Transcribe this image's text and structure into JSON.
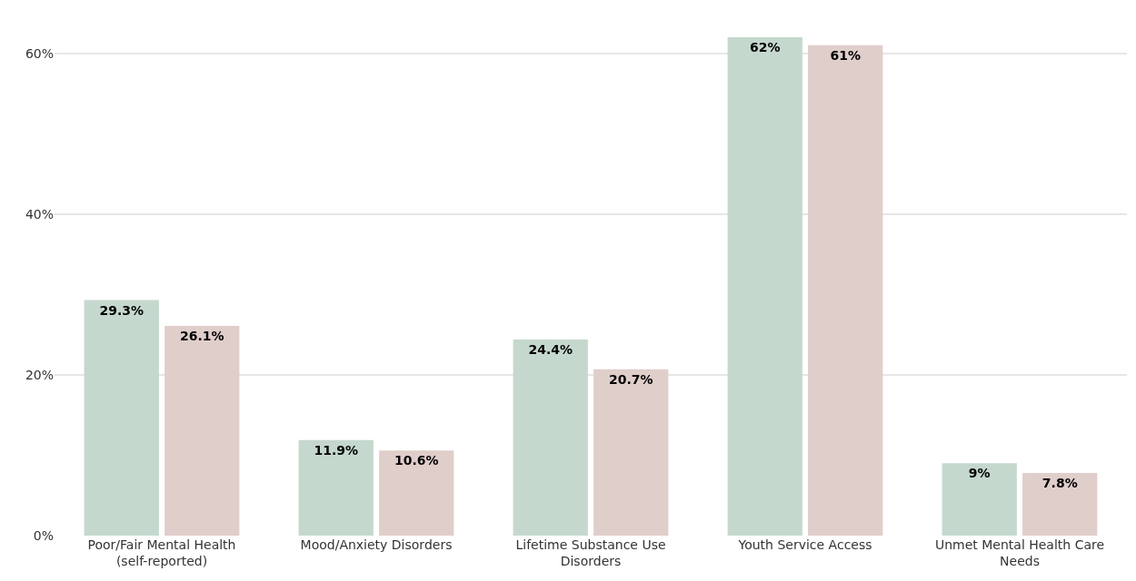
{
  "chart_data": {
    "type": "bar",
    "categories": [
      "Poor/Fair Mental Health (self-reported)",
      "Mood/Anxiety Disorders",
      "Lifetime Substance Use Disorders",
      "Youth Service Access",
      "Unmet Mental Health Care Needs"
    ],
    "series": [
      {
        "color": "#c5d8ce",
        "values": [
          29.3,
          11.9,
          24.4,
          62,
          9
        ],
        "value_labels": [
          "29.3%",
          "11.9%",
          "24.4%",
          "62%",
          "9%"
        ]
      },
      {
        "color": "#e0cecb",
        "values": [
          26.1,
          10.6,
          20.7,
          61,
          7.8
        ],
        "value_labels": [
          "26.1%",
          "10.6%",
          "20.7%",
          "61%",
          "7.8%"
        ]
      }
    ],
    "ylim": [
      0,
      62
    ],
    "yticks": [
      {
        "value": 0,
        "label": "0%"
      },
      {
        "value": 20,
        "label": "20%"
      },
      {
        "value": 40,
        "label": "40%"
      },
      {
        "value": 60,
        "label": "60%"
      }
    ],
    "grid": "y"
  }
}
